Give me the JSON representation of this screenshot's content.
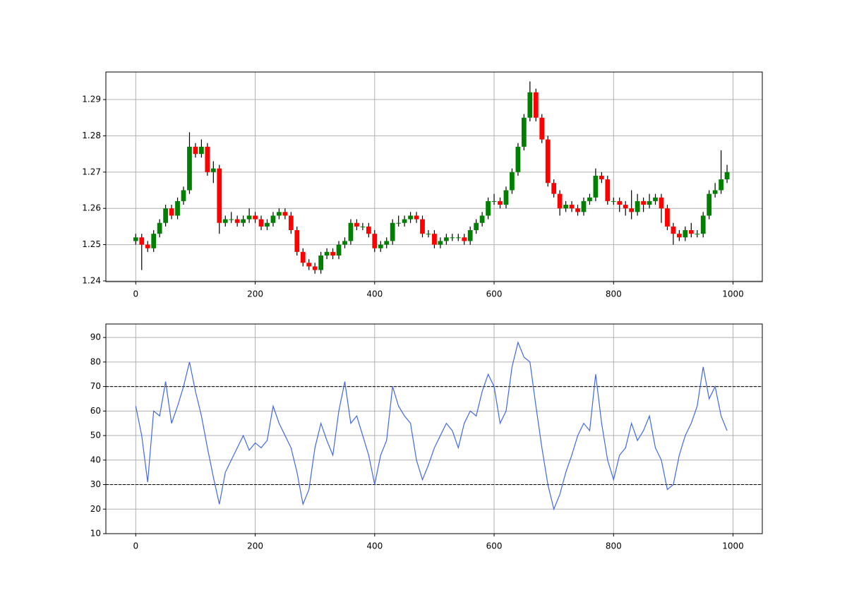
{
  "chart_data": [
    {
      "type": "candlestick",
      "x": [
        0,
        10,
        20,
        30,
        40,
        50,
        60,
        70,
        80,
        90,
        100,
        110,
        120,
        130,
        140,
        150,
        160,
        170,
        180,
        190,
        200,
        210,
        220,
        230,
        240,
        250,
        260,
        270,
        280,
        290,
        300,
        310,
        320,
        330,
        340,
        350,
        360,
        370,
        380,
        390,
        400,
        410,
        420,
        430,
        440,
        450,
        460,
        470,
        480,
        490,
        500,
        510,
        520,
        530,
        540,
        550,
        560,
        570,
        580,
        590,
        600,
        610,
        620,
        630,
        640,
        650,
        660,
        670,
        680,
        690,
        700,
        710,
        720,
        730,
        740,
        750,
        760,
        770,
        780,
        790,
        800,
        810,
        820,
        830,
        840,
        850,
        860,
        870,
        880,
        890,
        900,
        910,
        920,
        930,
        940,
        950,
        960,
        970,
        980,
        990
      ],
      "open": [
        1.251,
        1.252,
        1.25,
        1.249,
        1.253,
        1.256,
        1.26,
        1.258,
        1.262,
        1.265,
        1.277,
        1.275,
        1.277,
        1.27,
        1.271,
        1.256,
        1.257,
        1.257,
        1.256,
        1.257,
        1.258,
        1.257,
        1.255,
        1.256,
        1.258,
        1.259,
        1.258,
        1.254,
        1.248,
        1.245,
        1.244,
        1.243,
        1.247,
        1.248,
        1.247,
        1.25,
        1.251,
        1.256,
        1.255,
        1.255,
        1.253,
        1.249,
        1.25,
        1.251,
        1.256,
        1.256,
        1.257,
        1.258,
        1.257,
        1.253,
        1.253,
        1.25,
        1.251,
        1.252,
        1.252,
        1.252,
        1.251,
        1.254,
        1.256,
        1.258,
        1.262,
        1.262,
        1.261,
        1.265,
        1.27,
        1.277,
        1.285,
        1.292,
        1.285,
        1.279,
        1.267,
        1.264,
        1.26,
        1.261,
        1.26,
        1.259,
        1.262,
        1.263,
        1.269,
        1.268,
        1.262,
        1.262,
        1.261,
        1.26,
        1.259,
        1.262,
        1.261,
        1.262,
        1.263,
        1.26,
        1.255,
        1.253,
        1.252,
        1.254,
        1.253,
        1.253,
        1.258,
        1.264,
        1.265,
        1.268
      ],
      "high": [
        1.253,
        1.253,
        1.251,
        1.254,
        1.257,
        1.261,
        1.261,
        1.263,
        1.266,
        1.281,
        1.278,
        1.279,
        1.278,
        1.273,
        1.272,
        1.258,
        1.259,
        1.258,
        1.258,
        1.26,
        1.259,
        1.258,
        1.257,
        1.259,
        1.26,
        1.26,
        1.259,
        1.255,
        1.249,
        1.246,
        1.245,
        1.248,
        1.249,
        1.249,
        1.251,
        1.252,
        1.257,
        1.257,
        1.256,
        1.256,
        1.254,
        1.251,
        1.252,
        1.257,
        1.258,
        1.258,
        1.259,
        1.259,
        1.258,
        1.254,
        1.254,
        1.252,
        1.253,
        1.253,
        1.253,
        1.253,
        1.255,
        1.257,
        1.259,
        1.263,
        1.264,
        1.263,
        1.266,
        1.271,
        1.278,
        1.286,
        1.295,
        1.293,
        1.286,
        1.28,
        1.268,
        1.265,
        1.262,
        1.262,
        1.261,
        1.263,
        1.264,
        1.271,
        1.27,
        1.269,
        1.263,
        1.263,
        1.262,
        1.265,
        1.264,
        1.263,
        1.264,
        1.264,
        1.264,
        1.261,
        1.256,
        1.254,
        1.255,
        1.256,
        1.254,
        1.259,
        1.265,
        1.267,
        1.276,
        1.272
      ],
      "low": [
        1.25,
        1.243,
        1.248,
        1.248,
        1.252,
        1.255,
        1.257,
        1.257,
        1.261,
        1.264,
        1.274,
        1.274,
        1.269,
        1.267,
        1.253,
        1.255,
        1.256,
        1.255,
        1.255,
        1.256,
        1.256,
        1.254,
        1.254,
        1.255,
        1.257,
        1.257,
        1.253,
        1.247,
        1.244,
        1.243,
        1.242,
        1.242,
        1.246,
        1.246,
        1.246,
        1.249,
        1.25,
        1.254,
        1.254,
        1.252,
        1.248,
        1.248,
        1.249,
        1.25,
        1.255,
        1.255,
        1.256,
        1.256,
        1.252,
        1.252,
        1.249,
        1.249,
        1.25,
        1.251,
        1.251,
        1.25,
        1.25,
        1.253,
        1.255,
        1.257,
        1.261,
        1.26,
        1.26,
        1.264,
        1.269,
        1.276,
        1.284,
        1.284,
        1.278,
        1.266,
        1.263,
        1.258,
        1.259,
        1.259,
        1.258,
        1.258,
        1.261,
        1.262,
        1.267,
        1.261,
        1.261,
        1.259,
        1.258,
        1.257,
        1.258,
        1.259,
        1.26,
        1.261,
        1.256,
        1.254,
        1.25,
        1.251,
        1.251,
        1.252,
        1.252,
        1.252,
        1.257,
        1.263,
        1.264,
        1.267
      ],
      "close": [
        1.252,
        1.25,
        1.249,
        1.253,
        1.256,
        1.26,
        1.258,
        1.262,
        1.265,
        1.277,
        1.275,
        1.277,
        1.27,
        1.271,
        1.256,
        1.257,
        1.257,
        1.256,
        1.257,
        1.258,
        1.257,
        1.255,
        1.256,
        1.258,
        1.259,
        1.258,
        1.254,
        1.248,
        1.245,
        1.244,
        1.243,
        1.247,
        1.248,
        1.247,
        1.25,
        1.251,
        1.256,
        1.255,
        1.255,
        1.253,
        1.249,
        1.25,
        1.251,
        1.256,
        1.256,
        1.257,
        1.258,
        1.257,
        1.253,
        1.253,
        1.25,
        1.251,
        1.252,
        1.252,
        1.252,
        1.251,
        1.254,
        1.256,
        1.258,
        1.262,
        1.262,
        1.261,
        1.265,
        1.27,
        1.277,
        1.285,
        1.292,
        1.285,
        1.279,
        1.267,
        1.264,
        1.26,
        1.261,
        1.26,
        1.259,
        1.262,
        1.263,
        1.269,
        1.268,
        1.262,
        1.262,
        1.261,
        1.26,
        1.259,
        1.262,
        1.261,
        1.262,
        1.263,
        1.26,
        1.255,
        1.253,
        1.252,
        1.254,
        1.253,
        1.253,
        1.258,
        1.264,
        1.265,
        1.268,
        1.27
      ],
      "up_color": "#008000",
      "down_color": "#ff0000",
      "wick_color": "#000000",
      "xlim": [
        -50,
        1049
      ],
      "ylim": [
        1.2398,
        1.2976
      ],
      "xticks": [
        0,
        200,
        400,
        600,
        800,
        1000
      ],
      "yticks": [
        1.24,
        1.25,
        1.26,
        1.27,
        1.28,
        1.29
      ],
      "grid": true
    },
    {
      "type": "line",
      "x": [
        0,
        10,
        20,
        30,
        40,
        50,
        60,
        70,
        80,
        90,
        100,
        110,
        120,
        130,
        140,
        150,
        160,
        170,
        180,
        190,
        200,
        210,
        220,
        230,
        240,
        250,
        260,
        270,
        280,
        290,
        300,
        310,
        320,
        330,
        340,
        350,
        360,
        370,
        380,
        390,
        400,
        410,
        420,
        430,
        440,
        450,
        460,
        470,
        480,
        490,
        500,
        510,
        520,
        530,
        540,
        550,
        560,
        570,
        580,
        590,
        600,
        610,
        620,
        630,
        640,
        650,
        660,
        670,
        680,
        690,
        700,
        710,
        720,
        730,
        740,
        750,
        760,
        770,
        780,
        790,
        800,
        810,
        820,
        830,
        840,
        850,
        860,
        870,
        880,
        890,
        900,
        910,
        920,
        930,
        940,
        950,
        960,
        970,
        980,
        990
      ],
      "series": [
        {
          "color": "#4169e1",
          "values": [
            62,
            50,
            31,
            60,
            58,
            72,
            55,
            62,
            70,
            80,
            68,
            58,
            45,
            33,
            22,
            35,
            40,
            45,
            50,
            44,
            47,
            45,
            48,
            62,
            55,
            50,
            45,
            35,
            22,
            28,
            45,
            55,
            48,
            42,
            60,
            72,
            55,
            58,
            50,
            42,
            30,
            42,
            48,
            70,
            62,
            58,
            55,
            40,
            32,
            38,
            45,
            50,
            55,
            52,
            45,
            55,
            60,
            58,
            68,
            75,
            70,
            55,
            60,
            78,
            88,
            82,
            80,
            62,
            45,
            30,
            20,
            26,
            35,
            42,
            50,
            55,
            52,
            75,
            55,
            40,
            32,
            42,
            45,
            55,
            48,
            52,
            58,
            45,
            40,
            28,
            30,
            42,
            50,
            55,
            62,
            78,
            65,
            70,
            58,
            52
          ]
        }
      ],
      "hlines": [
        70,
        30
      ],
      "hline_color": "#000000",
      "xlim": [
        -50,
        1049
      ],
      "ylim": [
        10,
        95.5
      ],
      "xticks": [
        0,
        200,
        400,
        600,
        800,
        1000
      ],
      "yticks": [
        10,
        20,
        30,
        40,
        50,
        60,
        70,
        80,
        90
      ],
      "grid": true
    }
  ]
}
